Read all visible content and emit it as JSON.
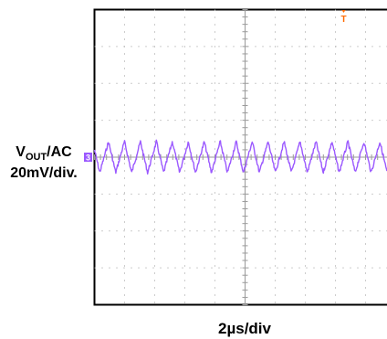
{
  "chart_data": {
    "type": "line",
    "title": "",
    "series": [
      {
        "name": "",
        "color": "#9b59ff",
        "waveform": "triangle-ripple",
        "period_div": 0.53,
        "amplitude_div": 0.42,
        "offset_div": 0
      }
    ],
    "ylabel_main": "V",
    "ylabel_sub": "OUT",
    "ylabel_suffix": "/AC",
    "y_scale": "20mV/div.",
    "x_scale": "2µs/div",
    "channel_marker": "3",
    "trigger_marker": "T",
    "trigger_color": "#ff6a00",
    "grid": true,
    "divisions": {
      "x": 10,
      "y": 8
    }
  }
}
